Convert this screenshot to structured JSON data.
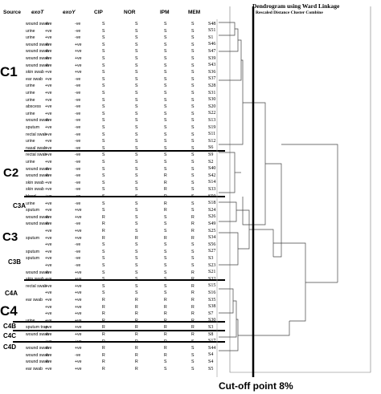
{
  "headers": {
    "source": "Source",
    "exoT": "exoT",
    "exoY": "exoY",
    "cip": "CIP",
    "nor": "NOR",
    "ipm": "IPM",
    "mem": "MEM"
  },
  "dendrogram": {
    "title": "Dendrogram using Ward Linkage",
    "subtitle": "Rescaled Distance Cluster Combine",
    "cutoff_label": "Cut-off point 8%"
  },
  "cluster_labels": [
    "C1",
    "C2",
    "C3A",
    "C3",
    "C3B",
    "C4A",
    "C4",
    "C4B",
    "C4C",
    "C4D"
  ],
  "rows": [
    {
      "src": "wound swab",
      "t": "+ve",
      "y": "-ve",
      "cip": "S",
      "nor": "S",
      "ipm": "S",
      "mem": "S",
      "id": "S48"
    },
    {
      "src": "urine",
      "t": "+ve",
      "y": "-ve",
      "cip": "S",
      "nor": "S",
      "ipm": "S",
      "mem": "S",
      "id": "S51"
    },
    {
      "src": "urine",
      "t": "+ve",
      "y": "-ve",
      "cip": "S",
      "nor": "S",
      "ipm": "S",
      "mem": "S",
      "id": "S1"
    },
    {
      "src": "wound swab",
      "t": "+ve",
      "y": "+ve",
      "cip": "S",
      "nor": "S",
      "ipm": "S",
      "mem": "S",
      "id": "S46"
    },
    {
      "src": "wound swab",
      "t": "+ve",
      "y": "+ve",
      "cip": "S",
      "nor": "S",
      "ipm": "S",
      "mem": "S",
      "id": "S47"
    },
    {
      "src": "wound swab",
      "t": "+ve",
      "y": "+ve",
      "cip": "S",
      "nor": "S",
      "ipm": "S",
      "mem": "S",
      "id": "S39"
    },
    {
      "src": "wound swab",
      "t": "+ve",
      "y": "+ve",
      "cip": "S",
      "nor": "S",
      "ipm": "S",
      "mem": "S",
      "id": "S43"
    },
    {
      "src": "skin swab",
      "t": "+ve",
      "y": "+ve",
      "cip": "S",
      "nor": "S",
      "ipm": "S",
      "mem": "S",
      "id": "S36"
    },
    {
      "src": "ear swab",
      "t": "+ve",
      "y": "-ve",
      "cip": "S",
      "nor": "S",
      "ipm": "S",
      "mem": "S",
      "id": "S37"
    },
    {
      "src": "urine",
      "t": "+ve",
      "y": "-ve",
      "cip": "S",
      "nor": "S",
      "ipm": "S",
      "mem": "S",
      "id": "S28"
    },
    {
      "src": "urine",
      "t": "+ve",
      "y": "-ve",
      "cip": "S",
      "nor": "S",
      "ipm": "S",
      "mem": "S",
      "id": "S31"
    },
    {
      "src": "urine",
      "t": "+ve",
      "y": "-ve",
      "cip": "S",
      "nor": "S",
      "ipm": "S",
      "mem": "S",
      "id": "S30"
    },
    {
      "src": "abscess",
      "t": "+ve",
      "y": "-ve",
      "cip": "S",
      "nor": "S",
      "ipm": "S",
      "mem": "S",
      "id": "S20"
    },
    {
      "src": "urine",
      "t": "+ve",
      "y": "-ve",
      "cip": "S",
      "nor": "S",
      "ipm": "S",
      "mem": "S",
      "id": "S22"
    },
    {
      "src": "wound swab",
      "t": "+ve",
      "y": "-ve",
      "cip": "S",
      "nor": "S",
      "ipm": "S",
      "mem": "S",
      "id": "S13"
    },
    {
      "src": "sputum",
      "t": "+ve",
      "y": "-ve",
      "cip": "S",
      "nor": "S",
      "ipm": "S",
      "mem": "S",
      "id": "S19"
    },
    {
      "src": "rectal swab",
      "t": "+ve",
      "y": "-ve",
      "cip": "S",
      "nor": "S",
      "ipm": "S",
      "mem": "S",
      "id": "S11"
    },
    {
      "src": "urine",
      "t": "+ve",
      "y": "-ve",
      "cip": "S",
      "nor": "S",
      "ipm": "S",
      "mem": "S",
      "id": "S12"
    },
    {
      "src": "nasal swab",
      "t": "+ve",
      "y": "-ve",
      "cip": "S",
      "nor": "S",
      "ipm": "S",
      "mem": "S",
      "id": "S6"
    },
    {
      "src": "rectal swab",
      "t": "+ve",
      "y": "-ve",
      "cip": "S",
      "nor": "S",
      "ipm": "S",
      "mem": "S",
      "id": "S9"
    },
    {
      "src": "urine",
      "t": "+ve",
      "y": "-ve",
      "cip": "S",
      "nor": "S",
      "ipm": "S",
      "mem": "S",
      "id": "S2"
    },
    {
      "src": "wound swab",
      "t": "+ve",
      "y": "-ve",
      "cip": "S",
      "nor": "S",
      "ipm": "S",
      "mem": "S",
      "id": "S40"
    },
    {
      "src": "wound swab",
      "t": "+ve",
      "y": "-ve",
      "cip": "S",
      "nor": "S",
      "ipm": "R",
      "mem": "S",
      "id": "S42"
    },
    {
      "src": "skin swab",
      "t": "+ve",
      "y": "-ve",
      "cip": "S",
      "nor": "S",
      "ipm": "R",
      "mem": "S",
      "id": "S14"
    },
    {
      "src": "skin swab",
      "t": "+ve",
      "y": "-ve",
      "cip": "S",
      "nor": "S",
      "ipm": "R",
      "mem": "S",
      "id": "S33"
    },
    {
      "src": "blood",
      "t": "+ve",
      "y": "-ve",
      "cip": "S",
      "nor": "S",
      "ipm": "R",
      "mem": "S",
      "id": "S50"
    },
    {
      "src": "urine",
      "t": "+ve",
      "y": "-ve",
      "cip": "S",
      "nor": "S",
      "ipm": "R",
      "mem": "S",
      "id": "S18"
    },
    {
      "src": "sputum",
      "t": "+ve",
      "y": "+ve",
      "cip": "S",
      "nor": "S",
      "ipm": "R",
      "mem": "S",
      "id": "S24"
    },
    {
      "src": "wound swab",
      "t": "+ve",
      "y": "+ve",
      "cip": "R",
      "nor": "S",
      "ipm": "S",
      "mem": "R",
      "id": "S26"
    },
    {
      "src": "wound swab",
      "t": "+ve",
      "y": "-ve",
      "cip": "R",
      "nor": "S",
      "ipm": "S",
      "mem": "R",
      "id": "S49"
    },
    {
      "src": "",
      "t": "+ve",
      "y": "+ve",
      "cip": "R",
      "nor": "S",
      "ipm": "S",
      "mem": "R",
      "id": "S25"
    },
    {
      "src": "sputum",
      "t": "+ve",
      "y": "+ve",
      "cip": "R",
      "nor": "R",
      "ipm": "R",
      "mem": "R",
      "id": "S34"
    },
    {
      "src": "",
      "t": "+ve",
      "y": "-ve",
      "cip": "S",
      "nor": "S",
      "ipm": "S",
      "mem": "S",
      "id": "S56"
    },
    {
      "src": "sputum",
      "t": "+ve",
      "y": "-ve",
      "cip": "S",
      "nor": "S",
      "ipm": "S",
      "mem": "S",
      "id": "S27"
    },
    {
      "src": "sputum",
      "t": "+ve",
      "y": "-ve",
      "cip": "S",
      "nor": "S",
      "ipm": "S",
      "mem": "S",
      "id": "S3"
    },
    {
      "src": "",
      "t": "+ve",
      "y": "-ve",
      "cip": "S",
      "nor": "S",
      "ipm": "S",
      "mem": "S",
      "id": "S23"
    },
    {
      "src": "wound swab",
      "t": "+ve",
      "y": "+ve",
      "cip": "S",
      "nor": "S",
      "ipm": "S",
      "mem": "R",
      "id": "S21"
    },
    {
      "src": "skin swab",
      "t": "+ve",
      "y": "+ve",
      "cip": "S",
      "nor": "S",
      "ipm": "S",
      "mem": "R",
      "id": "S32"
    },
    {
      "src": "rectal swab",
      "t": "+ve",
      "y": "+ve",
      "cip": "S",
      "nor": "S",
      "ipm": "S",
      "mem": "R",
      "id": "S15"
    },
    {
      "src": "",
      "t": "+ve",
      "y": "+ve",
      "cip": "S",
      "nor": "S",
      "ipm": "S",
      "mem": "R",
      "id": "S16"
    },
    {
      "src": "ear swab",
      "t": "+ve",
      "y": "+ve",
      "cip": "R",
      "nor": "R",
      "ipm": "R",
      "mem": "R",
      "id": "S35"
    },
    {
      "src": "",
      "t": "+ve",
      "y": "+ve",
      "cip": "R",
      "nor": "R",
      "ipm": "R",
      "mem": "R",
      "id": "S38"
    },
    {
      "src": "",
      "t": "+ve",
      "y": "+ve",
      "cip": "R",
      "nor": "R",
      "ipm": "R",
      "mem": "R",
      "id": "S7"
    },
    {
      "src": "urine",
      "t": "+ve",
      "y": "+ve",
      "cip": "R",
      "nor": "R",
      "ipm": "R",
      "mem": "R",
      "id": "S30"
    },
    {
      "src": "sputum trap",
      "t": "+ve",
      "y": "+ve",
      "cip": "R",
      "nor": "R",
      "ipm": "R",
      "mem": "R",
      "id": "S3"
    },
    {
      "src": "wound swab",
      "t": "+ve",
      "y": "+ve",
      "cip": "R",
      "nor": "R",
      "ipm": "R",
      "mem": "R",
      "id": "S8"
    },
    {
      "src": "",
      "t": "+ve",
      "y": "+ve",
      "cip": "R",
      "nor": "R",
      "ipm": "R",
      "mem": "S",
      "id": "S17"
    },
    {
      "src": "wound swab",
      "t": "+ve",
      "y": "+ve",
      "cip": "R",
      "nor": "R",
      "ipm": "R",
      "mem": "S",
      "id": "S44"
    },
    {
      "src": "wound swab",
      "t": "+ve",
      "y": "-ve",
      "cip": "R",
      "nor": "R",
      "ipm": "R",
      "mem": "S",
      "id": "S4"
    },
    {
      "src": "wound swab",
      "t": "+ve",
      "y": "+ve",
      "cip": "R",
      "nor": "R",
      "ipm": "S",
      "mem": "S",
      "id": "S4"
    },
    {
      "src": "ear swab",
      "t": "+ve",
      "y": "+ve",
      "cip": "R",
      "nor": "R",
      "ipm": "S",
      "mem": "S",
      "id": "S5"
    }
  ]
}
